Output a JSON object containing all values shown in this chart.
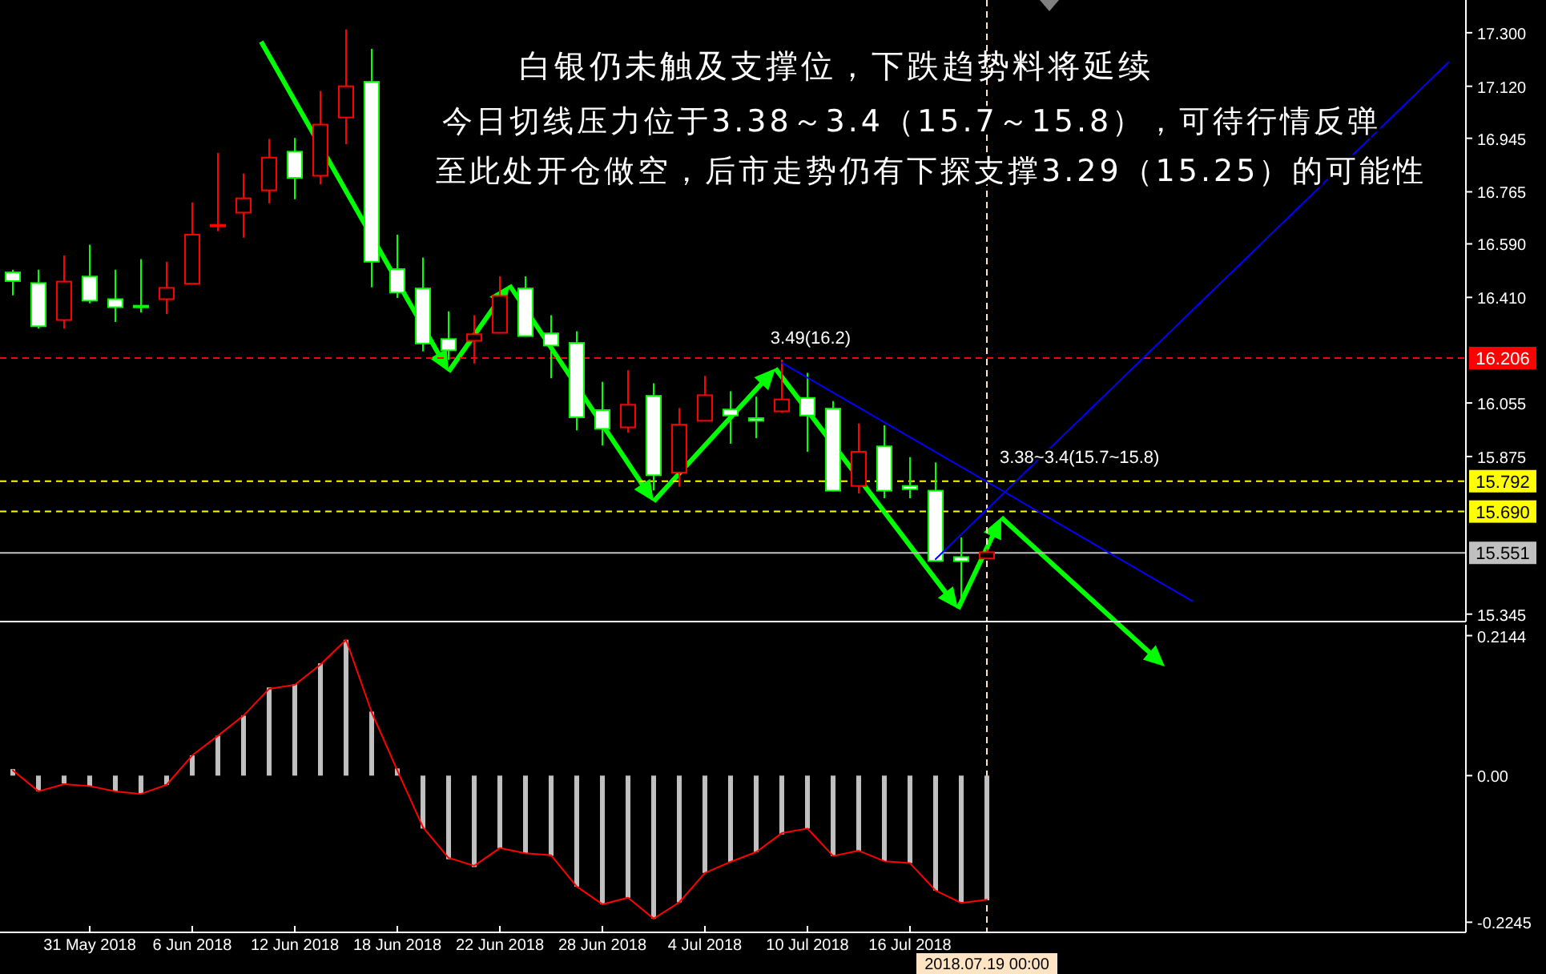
{
  "chart_data": [
    {
      "type": "candlestick",
      "title": "白银仍未触及支撑位，下跌趋势料将延续",
      "annotations": [
        "今日切线压力位于3.38～3.4（15.7～15.8），可待行情反弹",
        "至此处开仓做空，后市走势仍有下探支撑3.29（15.25）的可能性",
        {
          "text": "3.49(16.2)",
          "y": 16.2
        },
        {
          "text": "3.38~3.4(15.7~15.8)",
          "y": 15.8
        }
      ],
      "categories": [
        null,
        null,
        null,
        "31 May 2018",
        null,
        null,
        null,
        "6 Jun 2018",
        null,
        null,
        null,
        "12 Jun 2018",
        null,
        null,
        null,
        "18 Jun 2018",
        null,
        null,
        null,
        "22 Jun 2018",
        null,
        null,
        null,
        "28 Jun 2018",
        null,
        null,
        null,
        "4 Jul 2018",
        null,
        null,
        null,
        "10 Jul 2018",
        null,
        null,
        null,
        "16 Jul 2018",
        null,
        null,
        "2018.07.19 00:00",
        null,
        null,
        null,
        null,
        null,
        null,
        null,
        null,
        null,
        null,
        null,
        null,
        null,
        null,
        null,
        null,
        null,
        null
      ],
      "ohlc": [
        [
          16.494,
          16.503,
          16.417,
          16.465
        ],
        [
          16.458,
          16.503,
          16.305,
          16.313
        ],
        [
          16.334,
          16.551,
          16.305,
          16.463
        ],
        [
          16.48,
          16.587,
          16.39,
          16.399
        ],
        [
          16.404,
          16.503,
          16.327,
          16.377
        ],
        [
          16.382,
          16.539,
          16.359,
          16.38
        ],
        [
          16.404,
          16.53,
          16.354,
          16.442
        ],
        [
          16.456,
          16.729,
          16.456,
          16.621
        ],
        [
          16.65,
          16.896,
          16.632,
          16.654
        ],
        [
          16.695,
          16.826,
          16.611,
          16.743
        ],
        [
          16.77,
          16.943,
          16.726,
          16.88
        ],
        [
          16.9,
          16.946,
          16.74,
          16.812
        ],
        [
          16.819,
          17.104,
          16.79,
          16.991
        ],
        [
          17.015,
          17.311,
          16.925,
          17.12
        ],
        [
          17.135,
          17.246,
          16.444,
          16.53
        ],
        [
          16.505,
          16.621,
          16.408,
          16.426
        ],
        [
          16.44,
          16.544,
          16.228,
          16.255
        ],
        [
          16.27,
          16.363,
          16.201,
          16.232
        ],
        [
          16.264,
          16.35,
          16.187,
          16.286
        ],
        [
          16.291,
          16.481,
          16.291,
          16.415
        ],
        [
          16.44,
          16.481,
          16.28,
          16.28
        ],
        [
          16.289,
          16.35,
          16.138,
          16.248
        ],
        [
          16.257,
          16.296,
          15.963,
          16.007
        ],
        [
          16.031,
          16.126,
          15.912,
          15.968
        ],
        [
          15.973,
          16.165,
          15.955,
          16.049
        ],
        [
          16.079,
          16.121,
          15.761,
          15.812
        ],
        [
          15.821,
          16.038,
          15.774,
          15.982
        ],
        [
          15.995,
          16.146,
          15.995,
          16.081
        ],
        [
          16.033,
          16.094,
          15.918,
          16.013
        ],
        [
          16.004,
          16.076,
          15.937,
          15.995
        ],
        [
          16.027,
          16.201,
          16.022,
          16.067
        ],
        [
          16.072,
          16.156,
          15.891,
          16.013
        ],
        [
          16.036,
          16.061,
          15.758,
          15.76
        ],
        [
          15.776,
          15.986,
          15.751,
          15.891
        ],
        [
          15.909,
          15.98,
          15.735,
          15.76
        ],
        [
          15.776,
          15.873,
          15.735,
          15.765
        ],
        [
          15.76,
          15.855,
          15.524,
          15.524
        ],
        [
          15.537,
          15.603,
          15.375,
          15.523
        ],
        [
          15.532,
          15.564,
          15.532,
          15.553
        ],
        null,
        null,
        null,
        null,
        null,
        null,
        null,
        null,
        null,
        null,
        null,
        null,
        null,
        null,
        null,
        null,
        null,
        null
      ],
      "colors": [
        "#00ff00",
        "#00ff00",
        "#ff0000",
        "#00ff00",
        "#00ff00",
        "#00ff00",
        "#ff0000",
        "#ff0000",
        "#ff0000",
        "#ff0000",
        "#ff0000",
        "#00ff00",
        "#ff0000",
        "#ff0000",
        "#00ff00",
        "#00ff00",
        "#00ff00",
        "#00ff00",
        "#ff0000",
        "#ff0000",
        "#00ff00",
        "#00ff00",
        "#00ff00",
        "#00ff00",
        "#ff0000",
        "#00ff00",
        "#ff0000",
        "#ff0000",
        "#00ff00",
        "#00ff00",
        "#ff0000",
        "#00ff00",
        "#00ff00",
        "#ff0000",
        "#00ff00",
        "#00ff00",
        "#00ff00",
        "#00ff00",
        "#ff0000",
        null,
        null,
        null,
        null,
        null,
        null,
        null,
        null,
        null,
        null,
        null,
        null,
        null,
        null,
        null,
        null,
        null,
        null
      ],
      "series": [
        {
          "type": "line",
          "color": "#0000ff",
          "values": [
            null,
            null,
            null,
            null,
            null,
            null,
            null,
            null,
            null,
            null,
            null,
            null,
            null,
            null,
            null,
            null,
            null,
            null,
            null,
            null,
            null,
            null,
            null,
            null,
            null,
            null,
            null,
            null,
            null,
            null,
            16.19,
            null,
            null,
            null,
            null,
            null,
            null,
            null,
            null,
            null,
            null,
            null,
            null,
            null,
            null,
            null,
            15.39,
            null,
            null,
            null,
            null,
            null,
            null,
            null,
            null,
            null,
            null
          ]
        },
        {
          "type": "line",
          "color": "#0000ff",
          "values": [
            null,
            null,
            null,
            null,
            null,
            null,
            null,
            null,
            null,
            null,
            null,
            null,
            null,
            null,
            null,
            null,
            null,
            null,
            null,
            null,
            null,
            null,
            null,
            null,
            null,
            null,
            null,
            null,
            null,
            null,
            null,
            null,
            null,
            null,
            null,
            null,
            15.53,
            null,
            null,
            null,
            null,
            null,
            null,
            null,
            null,
            null,
            null,
            null,
            null,
            null,
            null,
            null,
            null,
            null,
            null,
            null,
            17.2
          ]
        }
      ],
      "ylim": [
        15.32,
        17.41
      ],
      "yticks": [
        {
          "value": 15.345,
          "label": "15.345"
        },
        {
          "value": 15.875,
          "label": "15.875"
        },
        {
          "value": 16.055,
          "label": "16.055"
        },
        {
          "value": 16.41,
          "label": "16.410"
        },
        {
          "value": 16.59,
          "label": "16.590"
        },
        {
          "value": 16.765,
          "label": "16.765"
        },
        {
          "value": 16.945,
          "label": "16.945"
        },
        {
          "value": 17.12,
          "label": "17.120"
        },
        {
          "value": 17.3,
          "label": "17.300"
        }
      ],
      "ref_lines": [
        {
          "axis": "y",
          "value": 16.206,
          "label": "16.206",
          "color": "#ff0000",
          "line_style": "dashed"
        },
        {
          "axis": "y",
          "value": 15.792,
          "label": "15.792",
          "color": "#ffff00",
          "line_style": "dashed"
        },
        {
          "axis": "y",
          "value": 15.69,
          "label": "15.690",
          "color": "#ffff00",
          "line_style": "dashed"
        },
        {
          "axis": "y",
          "value": 15.551,
          "label": "15.551",
          "color": "#c0c0c0",
          "line_style": "solid"
        },
        {
          "axis": "x",
          "value": "2018.07.19 00:00",
          "color": "#ffe4c4",
          "line_style": "dashed"
        }
      ],
      "tick_labels": "y"
    },
    {
      "type": "bar",
      "categories": [
        null,
        null,
        null,
        "31 May 2018",
        null,
        null,
        null,
        "6 Jun 2018",
        null,
        null,
        null,
        "12 Jun 2018",
        null,
        null,
        null,
        "18 Jun 2018",
        null,
        null,
        null,
        "22 Jun 2018",
        null,
        null,
        null,
        "28 Jun 2018",
        null,
        null,
        null,
        "4 Jul 2018",
        null,
        null,
        null,
        "10 Jul 2018",
        null,
        null,
        null,
        "16 Jul 2018",
        null,
        null,
        "2018.07.19 00:00",
        null,
        null,
        null,
        null,
        null,
        null,
        null,
        null,
        null,
        null,
        null,
        null,
        null,
        null,
        null,
        null,
        null,
        null
      ],
      "series": [
        {
          "type": "bar",
          "color": "#c0c0c0",
          "values": [
            0.01,
            -0.024,
            -0.012,
            -0.017,
            -0.024,
            -0.028,
            -0.014,
            0.031,
            0.061,
            0.092,
            0.135,
            0.14,
            0.172,
            0.208,
            0.098,
            0.011,
            -0.081,
            -0.128,
            -0.14,
            -0.111,
            -0.119,
            -0.123,
            -0.17,
            -0.197,
            -0.187,
            -0.219,
            -0.194,
            -0.149,
            -0.132,
            -0.117,
            -0.09,
            -0.081,
            -0.123,
            -0.115,
            -0.131,
            -0.134,
            -0.176,
            -0.194,
            -0.191,
            null,
            null,
            null,
            null,
            null,
            null,
            null,
            null,
            null,
            null,
            null,
            null,
            null,
            null,
            null,
            null,
            null,
            null
          ]
        },
        {
          "type": "line",
          "color": "#ff0000",
          "values": [
            0.008,
            -0.024,
            -0.013,
            -0.016,
            -0.024,
            -0.028,
            -0.014,
            0.031,
            0.061,
            0.092,
            0.133,
            0.139,
            0.17,
            0.208,
            0.097,
            0.008,
            -0.079,
            -0.126,
            -0.138,
            -0.111,
            -0.119,
            -0.122,
            -0.17,
            -0.197,
            -0.187,
            -0.219,
            -0.194,
            -0.149,
            -0.132,
            -0.117,
            -0.088,
            -0.081,
            -0.123,
            -0.115,
            -0.131,
            -0.134,
            -0.176,
            -0.195,
            -0.19,
            null,
            null,
            null,
            null,
            null,
            null,
            null,
            null,
            null,
            null,
            null,
            null,
            null,
            null,
            null,
            null,
            null,
            null
          ]
        }
      ],
      "ylim": [
        -0.24,
        0.231
      ],
      "yticks": [
        {
          "value": -0.2245,
          "label": "-0.2245"
        },
        {
          "value": 0,
          "label": "0.00"
        },
        {
          "value": 0.2144,
          "label": "0.2144"
        }
      ],
      "ref_lines": [
        {
          "axis": "x",
          "value": "2018.07.19 00:00",
          "color": "#ffe4c4",
          "line_style": "dashed"
        }
      ]
    }
  ]
}
